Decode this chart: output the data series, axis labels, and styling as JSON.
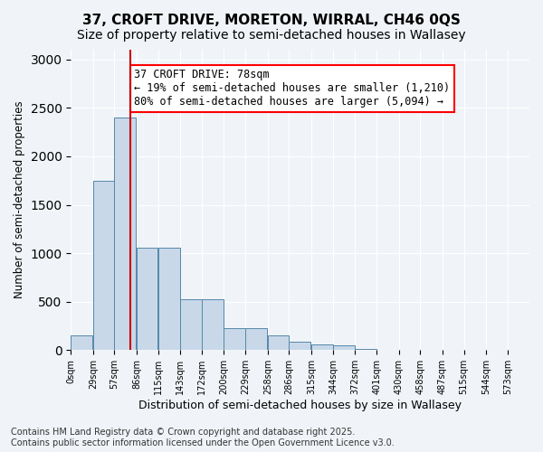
{
  "title1": "37, CROFT DRIVE, MORETON, WIRRAL, CH46 0QS",
  "title2": "Size of property relative to semi-detached houses in Wallasey",
  "xlabel": "Distribution of semi-detached houses by size in Wallasey",
  "ylabel": "Number of semi-detached properties",
  "bar_color": "#c8d8e8",
  "bar_edge_color": "#5588aa",
  "annotation_box_text": "37 CROFT DRIVE: 78sqm\n← 19% of semi-detached houses are smaller (1,210)\n80% of semi-detached houses are larger (5,094) →",
  "vline_x": 78,
  "vline_color": "#cc0000",
  "categories": [
    "0sqm",
    "29sqm",
    "57sqm",
    "86sqm",
    "115sqm",
    "143sqm",
    "172sqm",
    "200sqm",
    "229sqm",
    "258sqm",
    "286sqm",
    "315sqm",
    "344sqm",
    "372sqm",
    "401sqm",
    "430sqm",
    "458sqm",
    "487sqm",
    "515sqm",
    "544sqm",
    "573sqm"
  ],
  "bin_edges": [
    0,
    29,
    57,
    86,
    115,
    143,
    172,
    200,
    229,
    258,
    286,
    315,
    344,
    372,
    401,
    430,
    458,
    487,
    515,
    544,
    573
  ],
  "bar_heights": [
    150,
    1750,
    2400,
    1060,
    1060,
    530,
    530,
    230,
    230,
    150,
    90,
    60,
    50,
    10,
    5,
    3,
    2,
    1,
    1,
    0,
    0
  ],
  "ylim": [
    0,
    3100
  ],
  "yticks": [
    0,
    500,
    1000,
    1500,
    2000,
    2500,
    3000
  ],
  "background_color": "#f0f4f8",
  "footer_text": "Contains HM Land Registry data © Crown copyright and database right 2025.\nContains public sector information licensed under the Open Government Licence v3.0.",
  "title_fontsize": 11,
  "subtitle_fontsize": 10,
  "annot_fontsize": 8.5,
  "footer_fontsize": 7
}
